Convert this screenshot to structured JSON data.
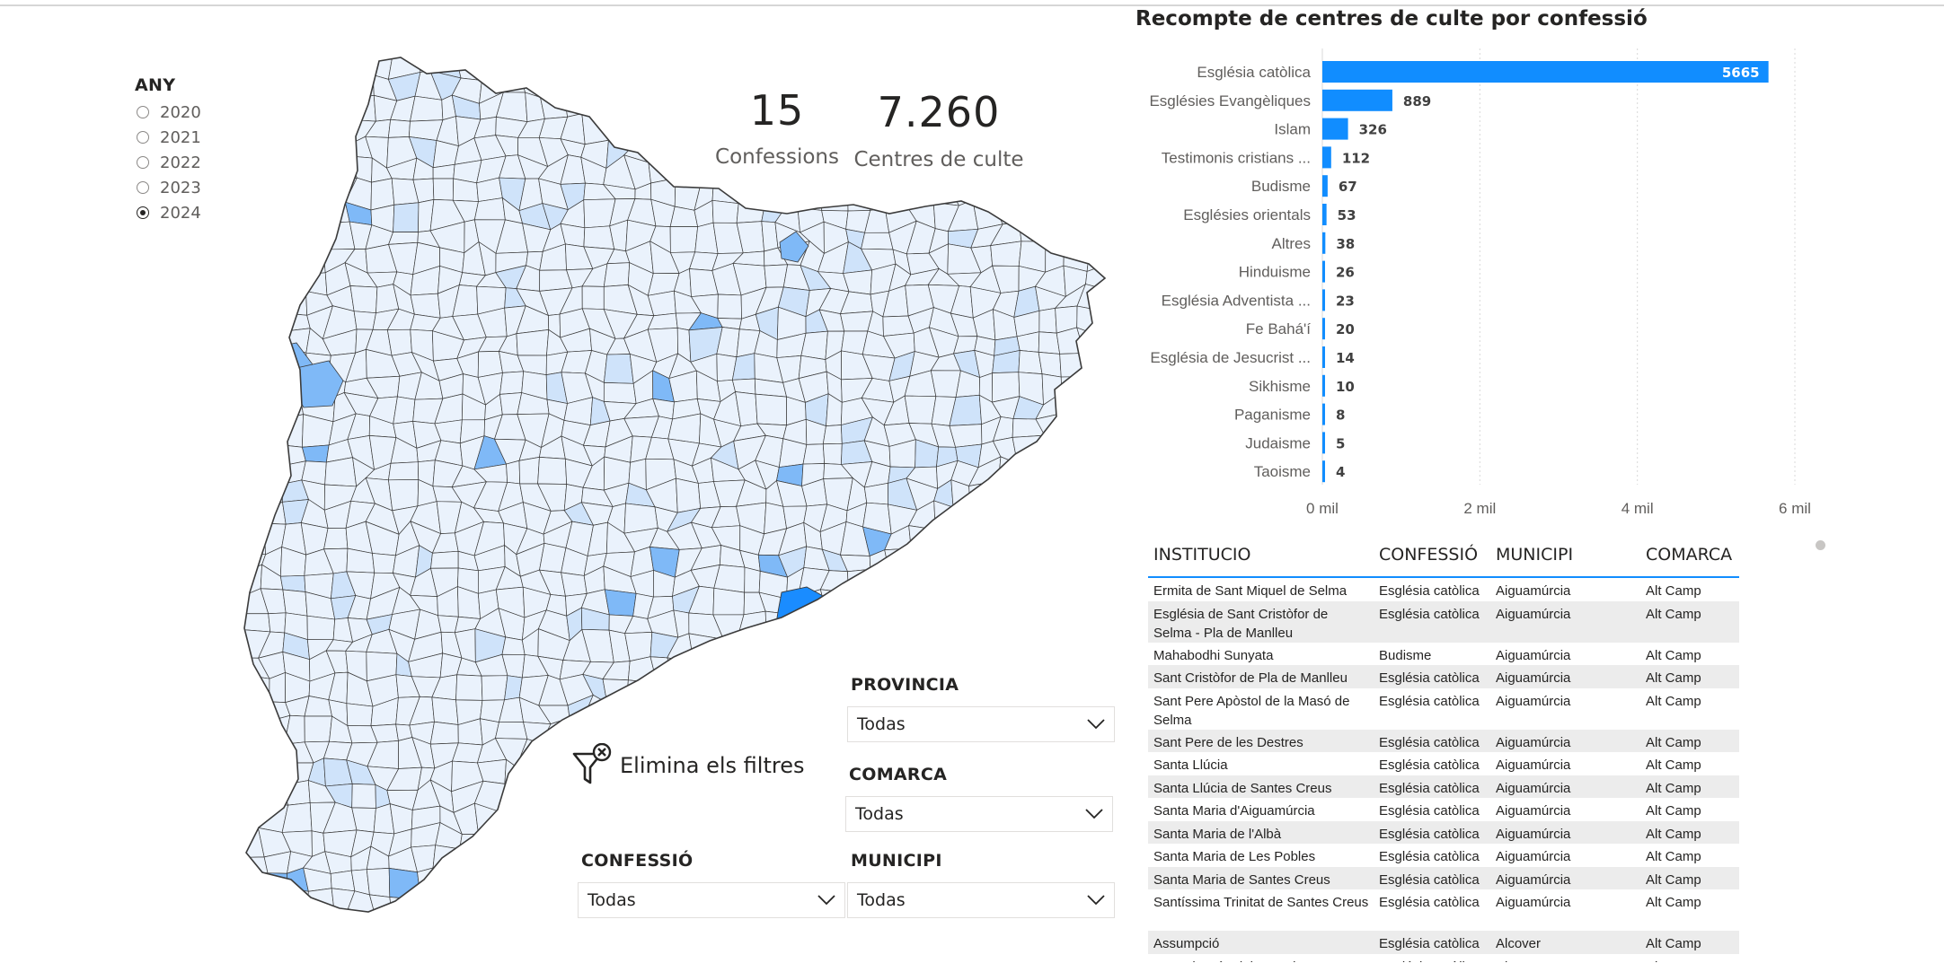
{
  "year_slicer": {
    "title": "ANY",
    "options": [
      "2020",
      "2021",
      "2022",
      "2023",
      "2024"
    ],
    "selected": "2024"
  },
  "kpis": {
    "confessions_value": "15",
    "confessions_label": "Confessions",
    "centres_value": "7.260",
    "centres_label": "Centres de culte"
  },
  "reset_filters_label": "Elimina els filtres",
  "filters": {
    "provincia": {
      "title": "PROVINCIA",
      "value": "Todas"
    },
    "comarca": {
      "title": "COMARCA",
      "value": "Todas"
    },
    "confessio": {
      "title": "CONFESSIÓ",
      "value": "Todas"
    },
    "municipi": {
      "title": "MUNICIPI",
      "value": "Todas"
    }
  },
  "colors": {
    "accent": "#118dff",
    "map_fill_light": "#eaf2fc",
    "map_fill_mid": "#cfe3fa",
    "map_fill_strong": "#7fb9f7",
    "map_fill_max": "#1a8cff",
    "map_stroke": "#3b3b3b"
  },
  "chart_data": {
    "type": "bar",
    "orientation": "horizontal",
    "title": "Recompte de centres de culte por confessió",
    "categories": [
      "Església catòlica",
      "Esglésies Evangèliques",
      "Islam",
      "Testimonis cristians ...",
      "Budisme",
      "Esglésies orientals",
      "Altres",
      "Hinduisme",
      "Església Adventista ...",
      "Fe Bahá'í",
      "Església de Jesucrist ...",
      "Sikhisme",
      "Paganisme",
      "Judaisme",
      "Taoisme"
    ],
    "values": [
      5665,
      889,
      326,
      112,
      67,
      53,
      38,
      26,
      23,
      20,
      14,
      10,
      8,
      5,
      4
    ],
    "xlim": [
      0,
      6000
    ],
    "x_ticks": [
      "0 mil",
      "2 mil",
      "4 mil",
      "6 mil"
    ],
    "x_tick_values": [
      0,
      2000,
      4000,
      6000
    ],
    "grid": true,
    "bar_color": "#118dff"
  },
  "table": {
    "columns": [
      "INSTITUCIO",
      "CONFESSIÓ",
      "MUNICIPI",
      "COMARCA"
    ],
    "rows": [
      [
        "Ermita de Sant Miquel de Selma",
        "Església catòlica",
        "Aiguamúrcia",
        "Alt Camp"
      ],
      [
        "Església de Sant Cristòfor de Selma - Pla de Manlleu",
        "Església catòlica",
        "Aiguamúrcia",
        "Alt Camp"
      ],
      [
        "Mahabodhi Sunyata",
        "Budisme",
        "Aiguamúrcia",
        "Alt Camp"
      ],
      [
        "Sant Cristòfor de Pla de Manlleu",
        "Església catòlica",
        "Aiguamúrcia",
        "Alt Camp"
      ],
      [
        "Sant Pere Apòstol de la Masó de Selma",
        "Església catòlica",
        "Aiguamúrcia",
        "Alt Camp"
      ],
      [
        "Sant Pere de les Destres",
        "Església catòlica",
        "Aiguamúrcia",
        "Alt Camp"
      ],
      [
        "Santa Llúcia",
        "Església catòlica",
        "Aiguamúrcia",
        "Alt Camp"
      ],
      [
        "Santa Llúcia de Santes Creus",
        "Església catòlica",
        "Aiguamúrcia",
        "Alt Camp"
      ],
      [
        "Santa Maria d'Aiguamúrcia",
        "Església catòlica",
        "Aiguamúrcia",
        "Alt Camp"
      ],
      [
        "Santa Maria de l'Albà",
        "Església catòlica",
        "Aiguamúrcia",
        "Alt Camp"
      ],
      [
        "Santa Maria de Les Pobles",
        "Església catòlica",
        "Aiguamúrcia",
        "Alt Camp"
      ],
      [
        "Santa Maria de Santes Creus",
        "Església catòlica",
        "Aiguamúrcia",
        "Alt Camp"
      ],
      [
        "Santíssima Trinitat de Santes Creus",
        "Església catòlica",
        "Aiguamúrcia",
        "Alt Camp"
      ],
      [
        "Assumpció",
        "Església catòlica",
        "Alcover",
        "Alt Camp"
      ],
      [
        "Mare de Déu del Remei",
        "Església catòlica",
        "Alcover",
        "Alt Camp"
      ]
    ]
  }
}
